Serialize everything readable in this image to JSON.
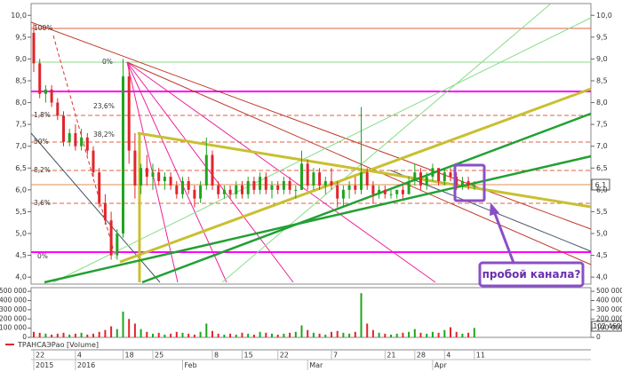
{
  "chart_data": {
    "type": "ohlc",
    "open": [
      9.6,
      8.9,
      8.2,
      8.3,
      8.0,
      7.7,
      7.1,
      7.3,
      7.0,
      7.2,
      6.9,
      6.4,
      5.7,
      5.3,
      4.5,
      5.0,
      8.6,
      6.9,
      6.1,
      6.5,
      6.3,
      6.4,
      6.2,
      6.3,
      6.1,
      5.9,
      6.2,
      6.0,
      5.8,
      6.1,
      6.8,
      6.1,
      5.9,
      6.0,
      5.9,
      6.1,
      5.9,
      6.2,
      6.0,
      6.3,
      6.0,
      6.1,
      6.0,
      6.2,
      6.0,
      6.0,
      6.6,
      6.1,
      6.4,
      6.1,
      6.2,
      6.1,
      5.8,
      6.0,
      6.1,
      6.0,
      6.4,
      6.1,
      5.9,
      6.0,
      5.9,
      5.9,
      6.0,
      5.9,
      6.2,
      6.4,
      6.1,
      6.3,
      6.5,
      6.2,
      6.4,
      6.3,
      6.1,
      6.2,
      6.1
    ],
    "high": [
      9.8,
      9.0,
      8.4,
      8.4,
      8.1,
      7.8,
      7.4,
      7.5,
      7.4,
      7.3,
      7.0,
      6.5,
      5.9,
      5.5,
      5.1,
      9.0,
      8.8,
      7.3,
      6.6,
      6.8,
      6.6,
      6.5,
      6.4,
      6.4,
      6.2,
      6.3,
      6.3,
      6.1,
      6.2,
      7.2,
      6.9,
      6.2,
      6.1,
      6.1,
      6.2,
      6.2,
      6.3,
      6.3,
      6.4,
      6.4,
      6.2,
      6.2,
      6.3,
      6.3,
      6.1,
      6.9,
      6.7,
      6.5,
      6.5,
      6.3,
      6.5,
      6.2,
      6.1,
      6.2,
      6.3,
      7.9,
      6.5,
      6.2,
      6.1,
      6.1,
      6.0,
      6.0,
      6.1,
      6.3,
      6.6,
      6.5,
      6.4,
      6.6,
      6.5,
      6.5,
      6.5,
      6.4,
      6.3,
      6.3,
      6.2
    ],
    "low": [
      8.7,
      8.1,
      8.0,
      7.9,
      7.6,
      7.0,
      7.0,
      6.9,
      6.9,
      6.8,
      6.3,
      5.6,
      5.2,
      4.4,
      4.4,
      4.9,
      6.6,
      5.8,
      5.9,
      6.1,
      6.0,
      6.1,
      6.0,
      6.0,
      5.8,
      5.8,
      5.9,
      5.6,
      5.7,
      6.0,
      6.0,
      5.8,
      5.8,
      5.8,
      5.8,
      5.8,
      5.8,
      5.9,
      5.9,
      5.9,
      5.8,
      5.9,
      5.9,
      5.9,
      5.8,
      6.0,
      6.0,
      6.0,
      6.0,
      5.9,
      6.0,
      5.6,
      5.6,
      5.8,
      5.9,
      5.9,
      6.0,
      5.7,
      5.8,
      5.8,
      5.8,
      5.8,
      5.8,
      5.9,
      6.1,
      6.0,
      6.0,
      6.2,
      6.1,
      6.1,
      6.2,
      6.0,
      6.0,
      6.0,
      6.0
    ],
    "close": [
      8.9,
      8.2,
      8.3,
      8.0,
      7.7,
      7.1,
      7.3,
      7.0,
      7.2,
      6.9,
      6.4,
      5.7,
      5.3,
      4.5,
      5.0,
      8.6,
      6.9,
      6.1,
      6.5,
      6.3,
      6.4,
      6.2,
      6.3,
      6.1,
      5.9,
      6.2,
      6.0,
      5.8,
      6.1,
      6.8,
      6.1,
      5.9,
      6.0,
      5.9,
      6.1,
      5.9,
      6.2,
      6.0,
      6.3,
      6.0,
      6.1,
      6.0,
      6.2,
      6.0,
      6.0,
      6.6,
      6.1,
      6.4,
      6.1,
      6.2,
      6.1,
      5.8,
      6.0,
      6.1,
      6.0,
      6.4,
      6.1,
      5.9,
      6.0,
      5.9,
      5.9,
      6.0,
      5.9,
      6.2,
      6.4,
      6.1,
      6.3,
      6.5,
      6.2,
      6.4,
      6.3,
      6.1,
      6.2,
      6.1,
      6.1
    ],
    "volume": [
      60000,
      50000,
      40000,
      30000,
      40000,
      50000,
      30000,
      40000,
      50000,
      30000,
      40000,
      60000,
      80000,
      120000,
      90000,
      280000,
      200000,
      150000,
      90000,
      60000,
      40000,
      50000,
      30000,
      40000,
      60000,
      50000,
      40000,
      30000,
      60000,
      150000,
      70000,
      40000,
      30000,
      40000,
      30000,
      50000,
      40000,
      30000,
      60000,
      50000,
      40000,
      30000,
      40000,
      50000,
      60000,
      130000,
      80000,
      50000,
      40000,
      30000,
      60000,
      70000,
      50000,
      40000,
      60000,
      480000,
      150000,
      80000,
      50000,
      40000,
      30000,
      40000,
      50000,
      60000,
      90000,
      50000,
      40000,
      60000,
      50000,
      80000,
      110000,
      60000,
      40000,
      50000,
      102460
    ],
    "categories": [
      "22",
      null,
      null,
      null,
      null,
      null,
      null,
      "4",
      null,
      null,
      null,
      null,
      null,
      null,
      null,
      "18",
      null,
      null,
      null,
      null,
      "25",
      null,
      null,
      null,
      null,
      null,
      null,
      null,
      null,
      null,
      "8",
      null,
      null,
      null,
      null,
      "15",
      null,
      null,
      null,
      null,
      null,
      "22",
      null,
      null,
      null,
      null,
      null,
      null,
      null,
      null,
      "7",
      null,
      null,
      null,
      null,
      null,
      null,
      null,
      null,
      "21",
      null,
      null,
      null,
      null,
      "28",
      null,
      null,
      null,
      null,
      "4",
      null,
      null,
      null,
      null,
      "11"
    ],
    "period_labels": [
      "2015",
      null,
      null,
      null,
      null,
      null,
      null,
      "2016",
      null,
      null,
      null,
      null,
      null,
      null,
      null,
      null,
      null,
      null,
      null,
      null,
      null,
      null,
      null,
      null,
      null,
      "Feb",
      null,
      null,
      null,
      null,
      null,
      null,
      null,
      null,
      null,
      null,
      null,
      null,
      null,
      null,
      null,
      null,
      null,
      null,
      null,
      null,
      "Mar",
      null,
      null,
      null,
      null,
      null,
      null,
      null,
      null,
      null,
      null,
      null,
      null,
      null,
      null,
      null,
      null,
      null,
      null,
      null,
      null,
      "Apr",
      null,
      null,
      null,
      null,
      null,
      null,
      null
    ],
    "up_color": "#1fa51f",
    "down_color": "#e0262b",
    "ylim": [
      3.84,
      10.27
    ],
    "yticks": [
      {
        "value": 4,
        "label": "4,0"
      },
      {
        "value": 4.5,
        "label": "4,5"
      },
      {
        "value": 5,
        "label": "5,0"
      },
      {
        "value": 5.5,
        "label": "5,5"
      },
      {
        "value": 6,
        "label": "6,0"
      },
      {
        "value": 6.5,
        "label": "6,5"
      },
      {
        "value": 7,
        "label": "7,0"
      },
      {
        "value": 7.5,
        "label": "7,5"
      },
      {
        "value": 8,
        "label": "8,0"
      },
      {
        "value": 8.5,
        "label": "8,5"
      },
      {
        "value": 9,
        "label": "9,0"
      },
      {
        "value": 9.5,
        "label": "9,5"
      },
      {
        "value": 10,
        "label": "10,0"
      }
    ],
    "y2lim": [
      0,
      540000
    ],
    "y2ticks": [
      0,
      {
        "value": 100000,
        "label": "100 000"
      },
      {
        "value": 200000,
        "label": "200 000"
      },
      {
        "value": 300000,
        "label": "300 000"
      },
      {
        "value": 400000,
        "label": "400 000"
      },
      {
        "value": 500000,
        "label": "500 000"
      }
    ],
    "last_price_label": "6,1",
    "last_volume_label": "102 460",
    "volume_legend": "ТРАНСАЭРао [Volume]",
    "fib_labels": [
      "100%",
      "1,8%",
      "50%",
      "8,2%",
      "3,6%",
      "0%",
      "0%",
      "23,6%",
      "38,2%"
    ],
    "annotation": "пробой канала?"
  }
}
